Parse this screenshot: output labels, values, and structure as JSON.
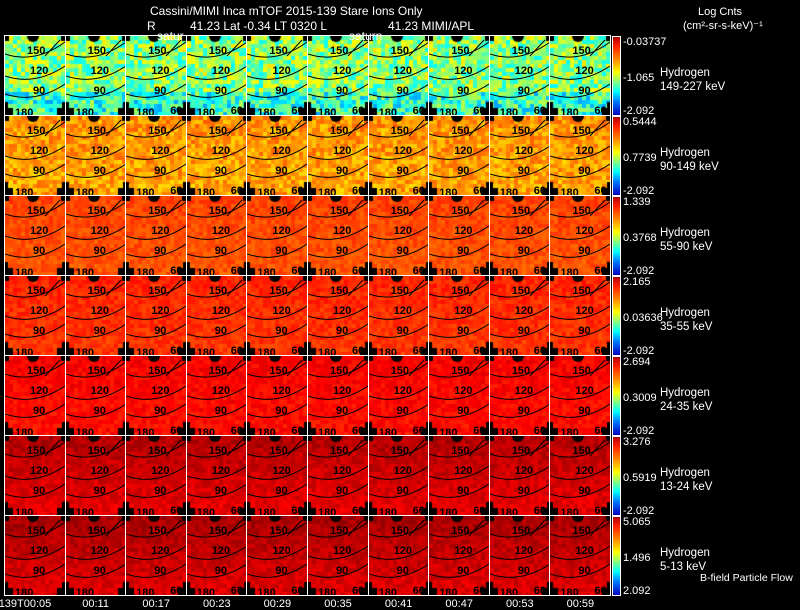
{
  "header": {
    "title": "Cassini/MIMI Inca mTOF  2015-139    Stare    Ions Only",
    "subtitle_r": "R",
    "subtitle_pos": "41.23 Lat -0.34 LT 0320 L",
    "subtitle_l": "41.23  MIMI/APL",
    "units_title": "Log Cnts",
    "units": "(cm²-sr-s-keV)⁻¹",
    "saturn_labels": [
      "satur",
      "saturn"
    ]
  },
  "footer": {
    "legend": "B-field Particle Flow"
  },
  "contour_labels": [
    "150",
    "120",
    "90",
    "180",
    "60"
  ],
  "chart_data": {
    "type": "heatmap",
    "title": "Cassini/MIMI Inca mTOF 2015-139 Stare Ions Only",
    "times": [
      "139T00:05",
      "00:11",
      "00:17",
      "00:23",
      "00:29",
      "00:35",
      "00:41",
      "00:47",
      "00:53",
      "00:59"
    ],
    "colorbar_label": "Log Cnts (cm2-sr-s-keV)-1",
    "rows": [
      {
        "species": "Hydrogen",
        "energy": "149-227 keV",
        "max": "-0.03737",
        "mid": "-1.065",
        "min": "-2.092",
        "level": 0.5
      },
      {
        "species": "Hydrogen",
        "energy": "90-149 keV",
        "max": "0.5444",
        "mid": "0.7739",
        "min": "-2.092",
        "level": 0.71
      },
      {
        "species": "Hydrogen",
        "energy": "55-90 keV",
        "max": "1.339",
        "mid": "0.3768",
        "min": "-2.092",
        "level": 0.79
      },
      {
        "species": "Hydrogen",
        "energy": "35-55 keV",
        "max": "2.165",
        "mid": "0.03636",
        "min": "-2.092",
        "level": 0.82
      },
      {
        "species": "Hydrogen",
        "energy": "24-35 keV",
        "max": "2.694",
        "mid": "0.3009",
        "min": "-2.092",
        "level": 0.86
      },
      {
        "species": "Hydrogen",
        "energy": "13-24 keV",
        "max": "3.276",
        "mid": "0.5919",
        "min": "-2.092",
        "level": 0.89
      },
      {
        "species": "Hydrogen",
        "energy": "5-13 keV",
        "max": "5.065",
        "mid": "1.496",
        "min": "2.092",
        "level": 0.9
      }
    ]
  }
}
